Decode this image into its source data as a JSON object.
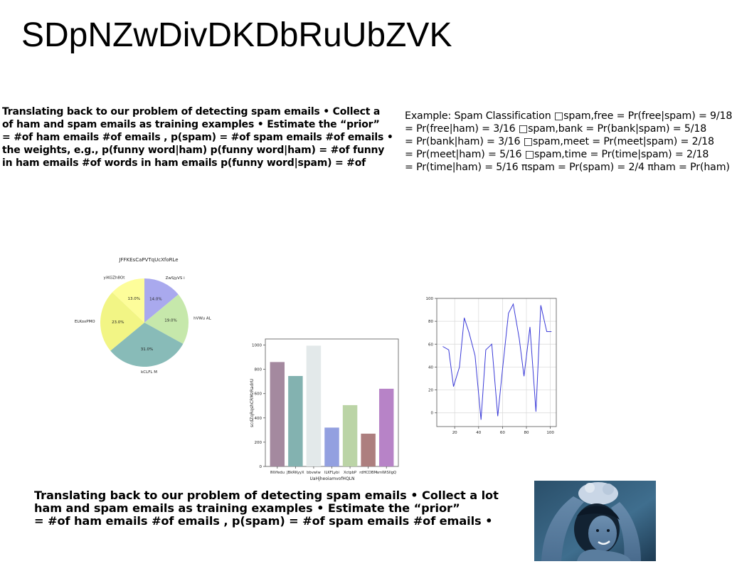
{
  "page": {
    "title": "SDpNZwDivDKDbRuUbZVK",
    "paragraph1": [
      "Translating back to our problem of detecting spam emails • Collect a",
      "of ham and spam emails as training examples • Estimate the “prior”",
      "= #of ham emails #of emails , p(spam) = #of spam emails #of emails •",
      "the weights, e.g., p(funny word|ham) p(funny word|ham) = #of funny",
      "in ham emails #of words in ham emails p(funny word|spam) = #of"
    ],
    "paragraph2": [
      "Example: Spam Classification □spam,free = Pr(free|spam) = 9/18",
      "= Pr(free|ham) = 3/16 □spam,bank = Pr(bank|spam) = 5/18",
      "= Pr(bank|ham) = 3/16 □spam,meet = Pr(meet|spam) = 2/18",
      "= Pr(meet|ham) = 5/16 □spam,time = Pr(time|spam) = 2/18",
      "= Pr(time|ham) = 5/16 πspam = Pr(spam) = 2/4 πham = Pr(ham)"
    ],
    "paragraph3": [
      "Translating back to our problem of detecting spam emails • Collect a lot",
      "ham and spam emails as training examples • Estimate the “prior”",
      "= #of ham emails #of emails , p(spam) = #of spam emails #of emails •"
    ]
  },
  "chart_data": [
    {
      "type": "pie",
      "title": "JFFKEsCaPVTqUcXfoRLe",
      "labels": [
        "ZwSjyVS i",
        "hVWu AL",
        "kCLFL M",
        "ELKoxPMO",
        "yiKGZh8Ot"
      ],
      "values": [
        14.0,
        19.0,
        31.0,
        23.0,
        13.0
      ],
      "percent_labels": [
        "14.0%",
        "19.0%",
        "31.0%",
        "23.0%",
        "13.0%"
      ],
      "colors": [
        "#a9a9ee",
        "#c6e8ab",
        "#88bbb8",
        "#f2f585",
        "#fdfd9a"
      ],
      "start_angle": 90,
      "direction": "clockwise"
    },
    {
      "type": "bar",
      "categories": [
        "lNVfedu",
        "JBkRKyyX",
        "bbvwlw",
        "ILKFLybi",
        "XctpbP",
        "rdHCDBM",
        "smWiSIlgQ"
      ],
      "values": [
        860,
        745,
        995,
        320,
        505,
        270,
        640
      ],
      "colors": [
        "#a4899f",
        "#83b2b0",
        "#e3e9ea",
        "#93a0e0",
        "#bbd4a6",
        "#ad7f7f",
        "#b783c7"
      ],
      "xlabel": "UaHjheoiamvofHQLN",
      "ylabel": "scdZqRqshCRMzRadrU",
      "ylim": [
        0,
        1050
      ],
      "yticks": [
        0,
        200,
        400,
        600,
        800,
        1000
      ]
    },
    {
      "type": "line",
      "x": [
        10,
        15,
        19,
        24,
        28,
        32,
        37,
        42,
        46,
        51,
        56,
        60,
        65,
        69,
        74,
        78,
        83,
        88,
        92,
        97,
        101
      ],
      "y": [
        58,
        55,
        23,
        40,
        83,
        70,
        50,
        -6,
        55,
        60,
        -3,
        38,
        87,
        95,
        65,
        32,
        75,
        1,
        94,
        71,
        71
      ],
      "color": "#3b3bd8",
      "xlim": [
        5,
        105
      ],
      "ylim": [
        -12,
        100
      ],
      "xticks": [
        20,
        40,
        60,
        80,
        100
      ],
      "yticks": [
        0,
        20,
        40,
        60,
        80,
        100
      ],
      "grid": true
    }
  ]
}
